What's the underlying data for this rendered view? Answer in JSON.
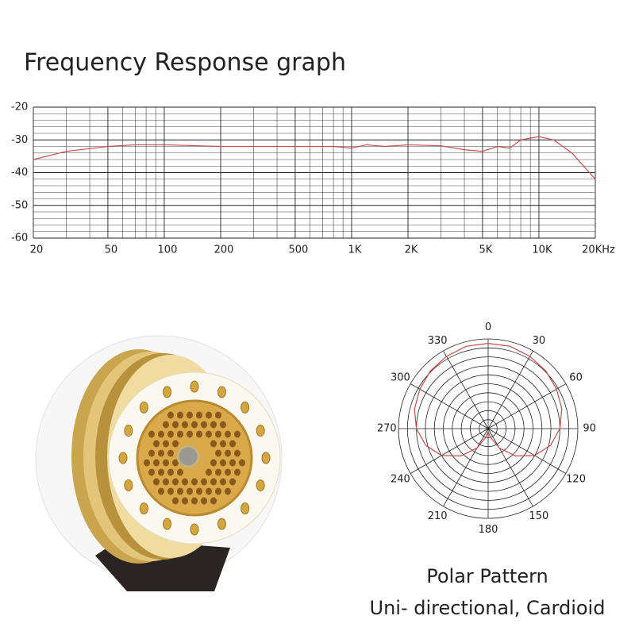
{
  "chart_data": [
    {
      "type": "line",
      "title": "Frequency Response graph",
      "x": [
        20,
        30,
        50,
        70,
        100,
        200,
        500,
        800,
        1000,
        1200,
        1500,
        2000,
        3000,
        4000,
        5000,
        6000,
        7000,
        8000,
        10000,
        12000,
        15000,
        20000
      ],
      "series": [
        {
          "color": "#c0504d",
          "values": [
            -36,
            -33.5,
            -32,
            -31.5,
            -31.5,
            -32,
            -32,
            -32,
            -32.5,
            -31.5,
            -32,
            -31.5,
            -31.8,
            -33,
            -33.5,
            -32,
            -32.5,
            -30,
            -29,
            -30,
            -34,
            -42
          ]
        }
      ],
      "log_x": true,
      "xlim": [
        20,
        20000
      ],
      "xticks": [
        20,
        50,
        100,
        200,
        500,
        {
          "value": 1000,
          "label": "1K"
        },
        {
          "value": 2000,
          "label": "2K"
        },
        {
          "value": 5000,
          "label": "5K"
        },
        {
          "value": 10000,
          "label": "10K"
        },
        {
          "value": 20000,
          "label": "20KHz"
        }
      ],
      "x_minor_ticks": [
        30,
        40,
        60,
        70,
        80,
        90,
        300,
        400,
        600,
        700,
        800,
        900,
        3000,
        4000,
        6000,
        7000,
        8000,
        9000
      ],
      "ylim": [
        -60,
        -20
      ],
      "yticks": [
        -20,
        -30,
        -40,
        -50,
        -60
      ],
      "y_minor_ticks": [
        -22,
        -24,
        -26,
        -28,
        -32,
        -34,
        -36,
        -38,
        -42,
        -44,
        -46,
        -48,
        -52,
        -54,
        -56,
        -58
      ],
      "grid": true
    },
    {
      "type": "polar",
      "title": "Polar Pattern",
      "subtitle": "Uni- directional, Cardioid",
      "theta": [
        0,
        15,
        30,
        45,
        60,
        75,
        90,
        105,
        120,
        135,
        150,
        165,
        180,
        195,
        210,
        225,
        240,
        255,
        270,
        285,
        300,
        315,
        330,
        345
      ],
      "series": [
        {
          "color": "#c0504d",
          "values": [
            0.95,
            0.95,
            0.93,
            0.91,
            0.88,
            0.85,
            0.8,
            0.72,
            0.6,
            0.43,
            0.25,
            0.1,
            0.03,
            0.1,
            0.25,
            0.43,
            0.6,
            0.72,
            0.8,
            0.85,
            0.88,
            0.91,
            0.93,
            0.95
          ]
        }
      ],
      "rlim": [
        0,
        1
      ],
      "rticks": [
        0.1,
        0.2,
        0.3,
        0.4,
        0.5,
        0.6,
        0.7,
        0.8,
        0.9,
        1
      ],
      "thetaticks": [
        0,
        30,
        60,
        90,
        120,
        150,
        180,
        210,
        240,
        270,
        300,
        330
      ]
    }
  ]
}
